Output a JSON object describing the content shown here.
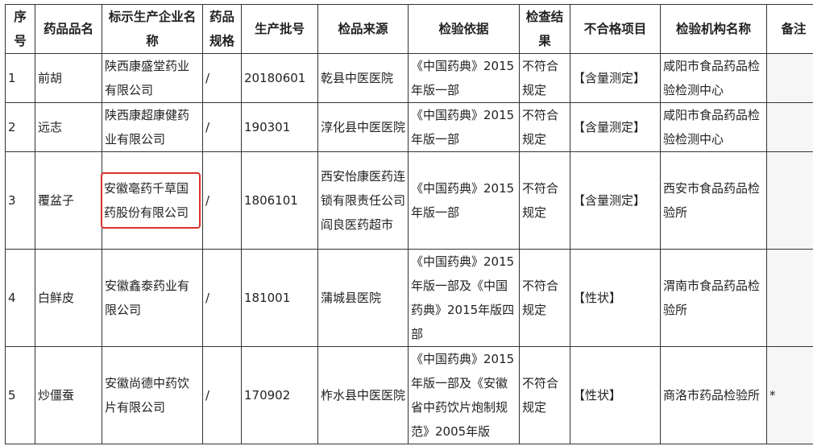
{
  "headers": [
    "序号",
    "药品品名",
    "标示生产企业名称",
    "药品规格",
    "生产批号",
    "检品来源",
    "检验依据",
    "检查结果",
    "不合格项目",
    "检验机构名称",
    "备注"
  ],
  "rows": [
    {
      "no": "1",
      "name": "前胡",
      "maker": "陕西康盛堂药业有限公司",
      "spec": "/",
      "batch": "20180601",
      "source": "乾县中医医院",
      "basis": "《中国药典》2015年版一部",
      "result": "不符合规定",
      "item": "【含量测定】",
      "agency": "咸阳市食品药品检验检测中心",
      "note": ""
    },
    {
      "no": "2",
      "name": "远志",
      "maker": "陕西康超康健药业有限公司",
      "spec": "/",
      "batch": "190301",
      "source": "淳化县中医医院",
      "basis": "《中国药典》2015年版一部",
      "result": "不符合规定",
      "item": "【含量测定】",
      "agency": "咸阳市食品药品检验检测中心",
      "note": ""
    },
    {
      "no": "3",
      "name": "覆盆子",
      "maker": "安徽亳药千草国药股份有限公司",
      "spec": "/",
      "batch": "1806101",
      "source": "西安怡康医药连锁有限责任公司阎良医药超市",
      "basis": "《中国药典》2015年版一部",
      "result": "不符合规定",
      "item": "【含量测定】",
      "agency": "西安市食品药品检验所",
      "note": ""
    },
    {
      "no": "4",
      "name": "白鲜皮",
      "maker": "安徽鑫泰药业有限公司",
      "spec": "/",
      "batch": "181001",
      "source": "蒲城县医院",
      "basis": "《中国药典》2015年版一部及《中国药典》2015年版四部",
      "result": "不符合规定",
      "item": "【性状】",
      "agency": "渭南市食品药品检验所",
      "note": ""
    },
    {
      "no": "5",
      "name": "炒僵蚕",
      "maker": "安徽尚德中药饮片有限公司",
      "spec": "/",
      "batch": "170902",
      "source": "柞水县中医医院",
      "basis": "《中国药典》2015年版一部及《安徽省中药饮片炮制规范》2005年版",
      "result": "不符合规定",
      "item": "【性状】",
      "agency": "商洛市药品检验所",
      "note": "*"
    }
  ],
  "highlight_color": "#d9332b"
}
